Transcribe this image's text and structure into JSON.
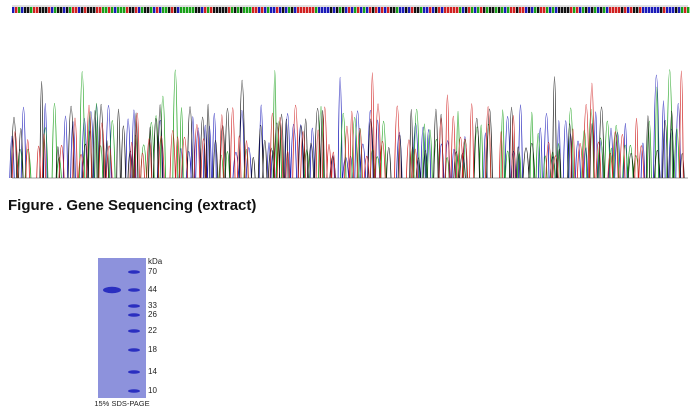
{
  "figure_caption": "Figure . Gene Sequencing (extract)",
  "gel": {
    "unit_label": "kDa",
    "markers": [
      70,
      44,
      33,
      26,
      22,
      18,
      14,
      10
    ],
    "caption": "15% SDS-PAGE"
  }
}
